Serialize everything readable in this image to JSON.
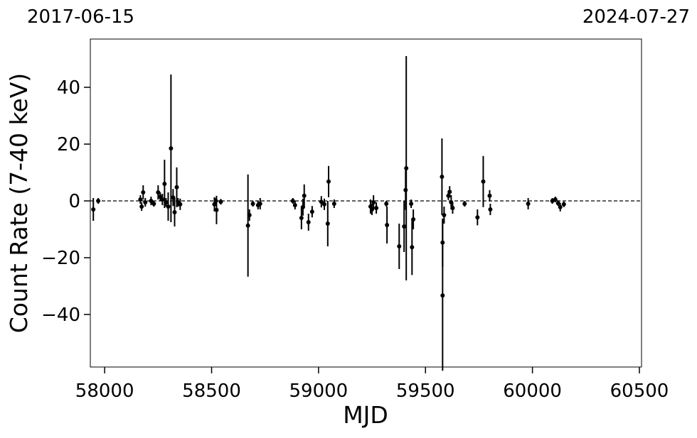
{
  "chart_data": {
    "type": "scatter",
    "xlabel": "MJD",
    "ylabel": "Count Rate (7-40 keV)",
    "top_labels": [
      "2017-06-15",
      "2024-07-27"
    ],
    "xlim": [
      57933,
      60510
    ],
    "ylim": [
      -58.5,
      57
    ],
    "xticks": [
      58000,
      58500,
      59000,
      59500,
      60000,
      60500
    ],
    "yticks": [
      {
        "value": -40,
        "label": "−40"
      },
      {
        "value": -20,
        "label": "−20"
      },
      0,
      20,
      40
    ],
    "hline": 0,
    "color": "#000000",
    "x": [
      57947,
      57970,
      58167,
      58173,
      58180,
      58190,
      58217,
      58230,
      58250,
      58260,
      58270,
      58280,
      58287,
      58297,
      58310,
      58320,
      58327,
      58337,
      58343,
      58353,
      58513,
      58520,
      58523,
      58543,
      58670,
      58677,
      58693,
      58717,
      58727,
      58880,
      58890,
      58920,
      58927,
      58933,
      58953,
      58970,
      59013,
      59027,
      59043,
      59047,
      59073,
      59243,
      59250,
      59257,
      59270,
      59317,
      59320,
      59377,
      59400,
      59407,
      59410,
      59433,
      59437,
      59443,
      59577,
      59580,
      59580,
      59587,
      59607,
      59613,
      59620,
      59627,
      59683,
      59743,
      59770,
      59800,
      59803,
      59980,
      60093,
      60107,
      60120,
      60130,
      60147
    ],
    "values": [
      -3,
      0,
      0.5,
      -2,
      3,
      -0.5,
      0,
      -1,
      3,
      1.5,
      0.5,
      6,
      -0.5,
      -2,
      18.5,
      1.2,
      -4,
      4.8,
      -0.5,
      -1.2,
      -1.2,
      0,
      -3.2,
      -0.3,
      -8.7,
      -5,
      -1,
      -1.5,
      -1,
      0,
      -1.5,
      -6,
      -2.2,
      1.8,
      -7.5,
      -3.8,
      -0.3,
      -1.2,
      -8,
      6.8,
      -1,
      -2,
      -3,
      -0.5,
      -2.5,
      -1,
      -8.5,
      -16,
      -9,
      3.8,
      11.5,
      -1,
      -16.3,
      -6.5,
      8.5,
      -14.7,
      -33.3,
      -5,
      1.8,
      3.2,
      -0.5,
      -2.5,
      -1,
      -5.8,
      6.8,
      1.8,
      -3,
      -1,
      0,
      0.5,
      -0.8,
      -2.2,
      -1.2
    ],
    "errors": [
      4,
      1,
      1.5,
      1.5,
      2.5,
      1.5,
      1.5,
      1,
      2.5,
      1.5,
      2,
      8.5,
      1.5,
      5,
      26,
      3,
      5,
      7,
      1.5,
      2,
      2.5,
      1,
      5,
      1,
      18,
      2,
      1,
      1.5,
      2,
      1,
      1.5,
      4,
      3,
      4,
      3,
      2,
      2,
      2,
      8,
      5.5,
      1.5,
      2.5,
      2,
      2.5,
      2,
      1,
      6.5,
      8,
      9,
      7,
      39.5,
      1.5,
      9.8,
      3.5,
      13.5,
      8.5,
      26.5,
      3,
      1.5,
      2,
      2.5,
      2,
      1,
      2.8,
      9,
      2,
      2,
      2,
      1,
      1,
      1,
      1.5,
      1
    ]
  }
}
